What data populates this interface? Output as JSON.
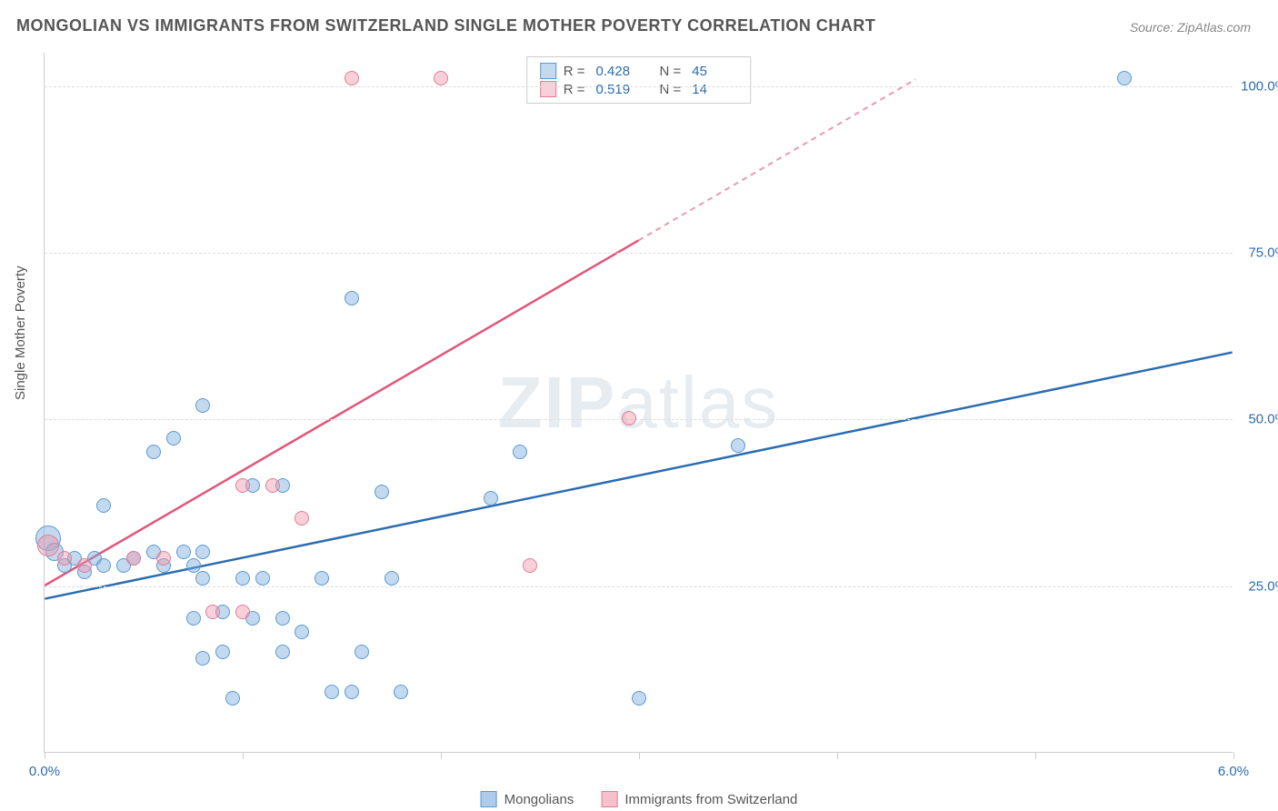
{
  "title": "MONGOLIAN VS IMMIGRANTS FROM SWITZERLAND SINGLE MOTHER POVERTY CORRELATION CHART",
  "source": "Source: ZipAtlas.com",
  "ylabel": "Single Mother Poverty",
  "watermark_a": "ZIP",
  "watermark_b": "atlas",
  "chart": {
    "type": "scatter",
    "xlim": [
      0,
      6
    ],
    "ylim": [
      0,
      105
    ],
    "xticks": [
      0,
      1,
      2,
      3,
      4,
      5,
      6
    ],
    "xtick_labels": {
      "0": "0.0%",
      "6": "6.0%"
    },
    "yticks": [
      25,
      50,
      75,
      100
    ],
    "ytick_labels": {
      "25": "25.0%",
      "50": "50.0%",
      "75": "75.0%",
      "100": "100.0%"
    },
    "background_color": "#ffffff",
    "grid_color": "#dddddd",
    "axis_color": "#cccccc"
  },
  "series": [
    {
      "name": "Mongolians",
      "fill": "rgba(120,170,220,0.45)",
      "stroke": "#5a9bd4",
      "line_color": "#2b6cb0",
      "r_label": "R =",
      "r_value": "0.428",
      "n_label": "N =",
      "n_value": "45",
      "trend": {
        "x1": 0,
        "y1": 23,
        "x2": 6,
        "y2": 60,
        "dashed_from": null
      },
      "points": [
        {
          "x": 0.02,
          "y": 32,
          "r": 14
        },
        {
          "x": 0.05,
          "y": 30,
          "r": 10
        },
        {
          "x": 0.1,
          "y": 28,
          "r": 8
        },
        {
          "x": 0.15,
          "y": 29,
          "r": 8
        },
        {
          "x": 0.2,
          "y": 27,
          "r": 8
        },
        {
          "x": 0.25,
          "y": 29,
          "r": 8
        },
        {
          "x": 0.3,
          "y": 28,
          "r": 8
        },
        {
          "x": 0.3,
          "y": 37,
          "r": 8
        },
        {
          "x": 0.4,
          "y": 28,
          "r": 8
        },
        {
          "x": 0.45,
          "y": 29,
          "r": 8
        },
        {
          "x": 0.55,
          "y": 45,
          "r": 8
        },
        {
          "x": 0.55,
          "y": 30,
          "r": 8
        },
        {
          "x": 0.6,
          "y": 28,
          "r": 8
        },
        {
          "x": 0.65,
          "y": 47,
          "r": 8
        },
        {
          "x": 0.7,
          "y": 30,
          "r": 8
        },
        {
          "x": 0.75,
          "y": 28,
          "r": 8
        },
        {
          "x": 0.8,
          "y": 30,
          "r": 8
        },
        {
          "x": 0.8,
          "y": 26,
          "r": 8
        },
        {
          "x": 0.75,
          "y": 20,
          "r": 8
        },
        {
          "x": 0.8,
          "y": 14,
          "r": 8
        },
        {
          "x": 0.8,
          "y": 52,
          "r": 8
        },
        {
          "x": 0.9,
          "y": 21,
          "r": 8
        },
        {
          "x": 0.9,
          "y": 15,
          "r": 8
        },
        {
          "x": 0.95,
          "y": 8,
          "r": 8
        },
        {
          "x": 1.0,
          "y": 26,
          "r": 8
        },
        {
          "x": 1.05,
          "y": 40,
          "r": 8
        },
        {
          "x": 1.05,
          "y": 20,
          "r": 8
        },
        {
          "x": 1.1,
          "y": 26,
          "r": 8
        },
        {
          "x": 1.2,
          "y": 40,
          "r": 8
        },
        {
          "x": 1.2,
          "y": 20,
          "r": 8
        },
        {
          "x": 1.2,
          "y": 15,
          "r": 8
        },
        {
          "x": 1.3,
          "y": 18,
          "r": 8
        },
        {
          "x": 1.4,
          "y": 26,
          "r": 8
        },
        {
          "x": 1.45,
          "y": 9,
          "r": 8
        },
        {
          "x": 1.55,
          "y": 68,
          "r": 8
        },
        {
          "x": 1.55,
          "y": 9,
          "r": 8
        },
        {
          "x": 1.6,
          "y": 15,
          "r": 8
        },
        {
          "x": 1.7,
          "y": 39,
          "r": 8
        },
        {
          "x": 1.75,
          "y": 26,
          "r": 8
        },
        {
          "x": 1.8,
          "y": 9,
          "r": 8
        },
        {
          "x": 2.25,
          "y": 38,
          "r": 8
        },
        {
          "x": 2.4,
          "y": 45,
          "r": 8
        },
        {
          "x": 3.0,
          "y": 8,
          "r": 8
        },
        {
          "x": 3.5,
          "y": 46,
          "r": 8
        },
        {
          "x": 5.45,
          "y": 101,
          "r": 8
        }
      ]
    },
    {
      "name": "Immigrants from Switzerland",
      "fill": "rgba(240,150,170,0.45)",
      "stroke": "#e27d98",
      "line_color": "#e2557a",
      "r_label": "R =",
      "r_value": "0.519",
      "n_label": "N =",
      "n_value": "14",
      "trend": {
        "x1": 0,
        "y1": 25,
        "x2": 4.4,
        "y2": 101,
        "dashed_from": 3.0
      },
      "points": [
        {
          "x": 0.02,
          "y": 31,
          "r": 12
        },
        {
          "x": 0.1,
          "y": 29,
          "r": 8
        },
        {
          "x": 0.2,
          "y": 28,
          "r": 8
        },
        {
          "x": 0.45,
          "y": 29,
          "r": 8
        },
        {
          "x": 0.6,
          "y": 29,
          "r": 8
        },
        {
          "x": 0.85,
          "y": 21,
          "r": 8
        },
        {
          "x": 1.0,
          "y": 40,
          "r": 8
        },
        {
          "x": 1.15,
          "y": 40,
          "r": 8
        },
        {
          "x": 1.3,
          "y": 35,
          "r": 8
        },
        {
          "x": 1.55,
          "y": 101,
          "r": 8
        },
        {
          "x": 2.0,
          "y": 101,
          "r": 8
        },
        {
          "x": 2.45,
          "y": 28,
          "r": 8
        },
        {
          "x": 2.95,
          "y": 50,
          "r": 8
        },
        {
          "x": 1.0,
          "y": 21,
          "r": 8
        }
      ]
    }
  ],
  "legend_bottom": [
    {
      "label": "Mongolians",
      "fill": "rgba(120,170,220,0.6)",
      "stroke": "#5a9bd4"
    },
    {
      "label": "Immigrants from Switzerland",
      "fill": "rgba(240,150,170,0.6)",
      "stroke": "#e27d98"
    }
  ]
}
